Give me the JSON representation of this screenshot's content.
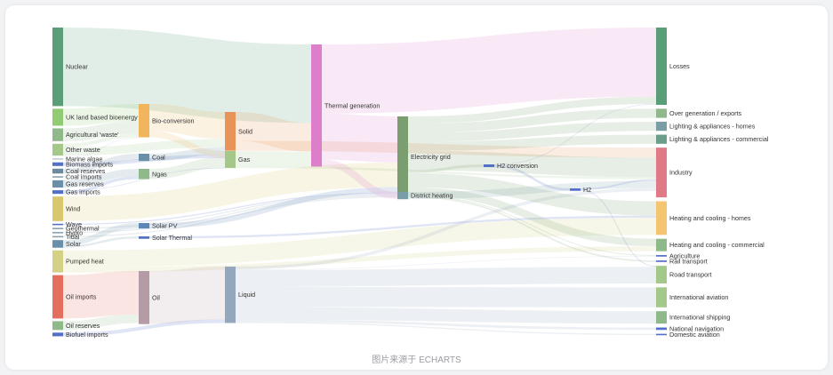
{
  "caption": "图片来源于 ECHARTS",
  "chart_data": {
    "type": "sankey",
    "nodes": [
      {
        "name": "Nuclear",
        "column": 0,
        "value": 25.9,
        "color": "#5a9e78"
      },
      {
        "name": "UK land based bioenergy",
        "column": 0,
        "value": 5.6,
        "color": "#91cc75"
      },
      {
        "name": "Agricultural 'waste'",
        "column": 0,
        "value": 4.2,
        "color": "#8fb98a"
      },
      {
        "name": "Other waste",
        "column": 0,
        "value": 3.9,
        "color": "#a3c88a"
      },
      {
        "name": "Marine algae",
        "column": 0,
        "value": 0.4,
        "color": "#c4cfd4"
      },
      {
        "name": "Biomass imports",
        "column": 0,
        "value": 1.2,
        "color": "#5470c6"
      },
      {
        "name": "Coal reserves",
        "column": 0,
        "value": 1.6,
        "color": "#6b8a9e"
      },
      {
        "name": "Coal imports",
        "column": 0,
        "value": 0.4,
        "color": "#8aa1b0"
      },
      {
        "name": "Gas reserves",
        "column": 0,
        "value": 2.4,
        "color": "#6b8fa8"
      },
      {
        "name": "Gas imports",
        "column": 0,
        "value": 1.2,
        "color": "#5470c6"
      },
      {
        "name": "Wind",
        "column": 0,
        "value": 8.1,
        "color": "#d8c76c"
      },
      {
        "name": "Wave",
        "column": 0,
        "value": 0.4,
        "color": "#5470c6"
      },
      {
        "name": "Geothermal",
        "column": 0,
        "value": 0.4,
        "color": "#8aa1b0"
      },
      {
        "name": "Hydro",
        "column": 0,
        "value": 0.4,
        "color": "#8aa1b0"
      },
      {
        "name": "Tidal",
        "column": 0,
        "value": 0.4,
        "color": "#8aa1b0"
      },
      {
        "name": "Solar",
        "column": 0,
        "value": 2.5,
        "color": "#6b8fa8"
      },
      {
        "name": "Pumped heat",
        "column": 0,
        "value": 7.3,
        "color": "#d4d086"
      },
      {
        "name": "Oil imports",
        "column": 0,
        "value": 14.3,
        "color": "#e56f5f"
      },
      {
        "name": "Oil reserves",
        "column": 0,
        "value": 2.9,
        "color": "#8fb98a"
      },
      {
        "name": "Biofuel imports",
        "column": 0,
        "value": 1.2,
        "color": "#5470c6"
      },
      {
        "name": "Bio-conversion",
        "column": 1,
        "value": 11.0,
        "color": "#f0b55d"
      },
      {
        "name": "Coal",
        "column": 1,
        "value": 2.4,
        "color": "#6b8fa8"
      },
      {
        "name": "Ngas",
        "column": 1,
        "value": 3.4,
        "color": "#8fb98a"
      },
      {
        "name": "Solar PV",
        "column": 1,
        "value": 1.8,
        "color": "#5f86b8"
      },
      {
        "name": "Solar Thermal",
        "column": 1,
        "value": 0.8,
        "color": "#5470c6"
      },
      {
        "name": "Oil",
        "column": 1,
        "value": 17.5,
        "color": "#b59ba6"
      },
      {
        "name": "Solid",
        "column": 2,
        "value": 12.8,
        "color": "#e8935a"
      },
      {
        "name": "Gas",
        "column": 2,
        "value": 5.6,
        "color": "#a3c88a"
      },
      {
        "name": "Liquid",
        "column": 2,
        "value": 18.6,
        "color": "#93a8bd"
      },
      {
        "name": "Thermal generation",
        "column": 3,
        "value": 40.3,
        "color": "#dc7ec9"
      },
      {
        "name": "Electricity grid",
        "column": 4,
        "value": 26.7,
        "color": "#7a9e6f"
      },
      {
        "name": "District heating",
        "column": 4,
        "value": 2.4,
        "color": "#7a9ea6"
      },
      {
        "name": "H2 conversion",
        "column": 5,
        "value": 0.9,
        "color": "#5470c6"
      },
      {
        "name": "H2",
        "column": 6,
        "value": 0.8,
        "color": "#5470c6"
      },
      {
        "name": "Losses",
        "column": 7,
        "value": 25.5,
        "color": "#5a9e78"
      },
      {
        "name": "Over generation / exports",
        "column": 7,
        "value": 3.0,
        "color": "#8fb98a"
      },
      {
        "name": "Lighting & appliances - homes",
        "column": 7,
        "value": 3.0,
        "color": "#7a9ea6"
      },
      {
        "name": "Lighting & appliances - commercial",
        "column": 7,
        "value": 3.0,
        "color": "#6b9e8a"
      },
      {
        "name": "Industry",
        "column": 7,
        "value": 16.4,
        "color": "#e07a86"
      },
      {
        "name": "Heating and cooling - homes",
        "column": 7,
        "value": 11.1,
        "color": "#f5c470"
      },
      {
        "name": "Heating and cooling - commercial",
        "column": 7,
        "value": 4.1,
        "color": "#8fb98a"
      },
      {
        "name": "Agriculture",
        "column": 7,
        "value": 0.5,
        "color": "#5470c6"
      },
      {
        "name": "Rail transport",
        "column": 7,
        "value": 0.5,
        "color": "#5470c6"
      },
      {
        "name": "Road transport",
        "column": 7,
        "value": 5.8,
        "color": "#a3c88a"
      },
      {
        "name": "International aviation",
        "column": 7,
        "value": 6.6,
        "color": "#a3c88a"
      },
      {
        "name": "International shipping",
        "column": 7,
        "value": 4.1,
        "color": "#8fb98a"
      },
      {
        "name": "National navigation",
        "column": 7,
        "value": 0.8,
        "color": "#5470c6"
      },
      {
        "name": "Domestic aviation",
        "column": 7,
        "value": 0.4,
        "color": "#5470c6"
      }
    ],
    "links": [
      {
        "source": "Nuclear",
        "target": "Thermal generation",
        "value": 25.9
      },
      {
        "source": "UK land based bioenergy",
        "target": "Bio-conversion",
        "value": 5.6
      },
      {
        "source": "Agricultural 'waste'",
        "target": "Bio-conversion",
        "value": 4.2
      },
      {
        "source": "Other waste",
        "target": "Bio-conversion",
        "value": 1.2
      },
      {
        "source": "Other waste",
        "target": "Solid",
        "value": 2.7
      },
      {
        "source": "Marine algae",
        "target": "Bio-conversion",
        "value": 0.4
      },
      {
        "source": "Biomass imports",
        "target": "Solid",
        "value": 1.2
      },
      {
        "source": "Coal reserves",
        "target": "Coal",
        "value": 1.6
      },
      {
        "source": "Coal imports",
        "target": "Coal",
        "value": 0.4
      },
      {
        "source": "Gas reserves",
        "target": "Ngas",
        "value": 2.4
      },
      {
        "source": "Gas imports",
        "target": "Ngas",
        "value": 1.0
      },
      {
        "source": "Gas imports",
        "target": "Gas",
        "value": 0.2
      },
      {
        "source": "Wind",
        "target": "Electricity grid",
        "value": 8.1
      },
      {
        "source": "Wave",
        "target": "Electricity grid",
        "value": 0.4
      },
      {
        "source": "Geothermal",
        "target": "Electricity grid",
        "value": 0.4
      },
      {
        "source": "Hydro",
        "target": "Electricity grid",
        "value": 0.4
      },
      {
        "source": "Tidal",
        "target": "Electricity grid",
        "value": 0.4
      },
      {
        "source": "Solar",
        "target": "Solar PV",
        "value": 1.8
      },
      {
        "source": "Solar",
        "target": "Solar Thermal",
        "value": 0.7
      },
      {
        "source": "Pumped heat",
        "target": "Heating and cooling - homes",
        "value": 5.7
      },
      {
        "source": "Pumped heat",
        "target": "Heating and cooling - commercial",
        "value": 1.6
      },
      {
        "source": "Oil imports",
        "target": "Oil",
        "value": 14.3
      },
      {
        "source": "Oil reserves",
        "target": "Oil",
        "value": 2.9
      },
      {
        "source": "Biofuel imports",
        "target": "Liquid",
        "value": 1.2
      },
      {
        "source": "Bio-conversion",
        "target": "Solid",
        "value": 8.9
      },
      {
        "source": "Bio-conversion",
        "target": "Gas",
        "value": 2.1
      },
      {
        "source": "Coal",
        "target": "Solid",
        "value": 2.4
      },
      {
        "source": "Ngas",
        "target": "Gas",
        "value": 3.4
      },
      {
        "source": "Solar PV",
        "target": "Electricity grid",
        "value": 1.8
      },
      {
        "source": "Solar Thermal",
        "target": "Heating and cooling - homes",
        "value": 0.7
      },
      {
        "source": "Oil",
        "target": "Liquid",
        "value": 17.4
      },
      {
        "source": "Solid",
        "target": "Thermal generation",
        "value": 9.5
      },
      {
        "source": "Solid",
        "target": "Industry",
        "value": 3.3
      },
      {
        "source": "Gas",
        "target": "Thermal generation",
        "value": 4.9
      },
      {
        "source": "Gas",
        "target": "Industry",
        "value": 0.7
      },
      {
        "source": "Liquid",
        "target": "Industry",
        "value": 1.0
      },
      {
        "source": "Liquid",
        "target": "Road transport",
        "value": 5.5
      },
      {
        "source": "Liquid",
        "target": "International aviation",
        "value": 6.6
      },
      {
        "source": "Liquid",
        "target": "International shipping",
        "value": 4.1
      },
      {
        "source": "Liquid",
        "target": "National navigation",
        "value": 0.8
      },
      {
        "source": "Liquid",
        "target": "Domestic aviation",
        "value": 0.4
      },
      {
        "source": "Liquid",
        "target": "Agriculture",
        "value": 0.2
      },
      {
        "source": "Thermal generation",
        "target": "Losses",
        "value": 22.8
      },
      {
        "source": "Thermal generation",
        "target": "Electricity grid",
        "value": 15.2
      },
      {
        "source": "Thermal generation",
        "target": "District heating",
        "value": 2.3
      },
      {
        "source": "Electricity grid",
        "target": "H2 conversion",
        "value": 0.9
      },
      {
        "source": "Electricity grid",
        "target": "Over generation / exports",
        "value": 3.0
      },
      {
        "source": "Electricity grid",
        "target": "Lighting & appliances - homes",
        "value": 3.0
      },
      {
        "source": "Electricity grid",
        "target": "Lighting & appliances - commercial",
        "value": 3.0
      },
      {
        "source": "Electricity grid",
        "target": "Industry",
        "value": 6.4
      },
      {
        "source": "Electricity grid",
        "target": "Heating and cooling - homes",
        "value": 4.7
      },
      {
        "source": "Electricity grid",
        "target": "Heating and cooling - commercial",
        "value": 2.5
      },
      {
        "source": "Electricity grid",
        "target": "Losses",
        "value": 2.4
      },
      {
        "source": "Electricity grid",
        "target": "Rail transport",
        "value": 0.5
      },
      {
        "source": "Electricity grid",
        "target": "Agriculture",
        "value": 0.3
      },
      {
        "source": "District heating",
        "target": "Industry",
        "value": 2.4
      },
      {
        "source": "H2 conversion",
        "target": "H2",
        "value": 0.8
      },
      {
        "source": "H2 conversion",
        "target": "Losses",
        "value": 0.2
      },
      {
        "source": "H2",
        "target": "Road transport",
        "value": 0.3
      },
      {
        "source": "H2",
        "target": "Industry",
        "value": 0.5
      }
    ]
  }
}
